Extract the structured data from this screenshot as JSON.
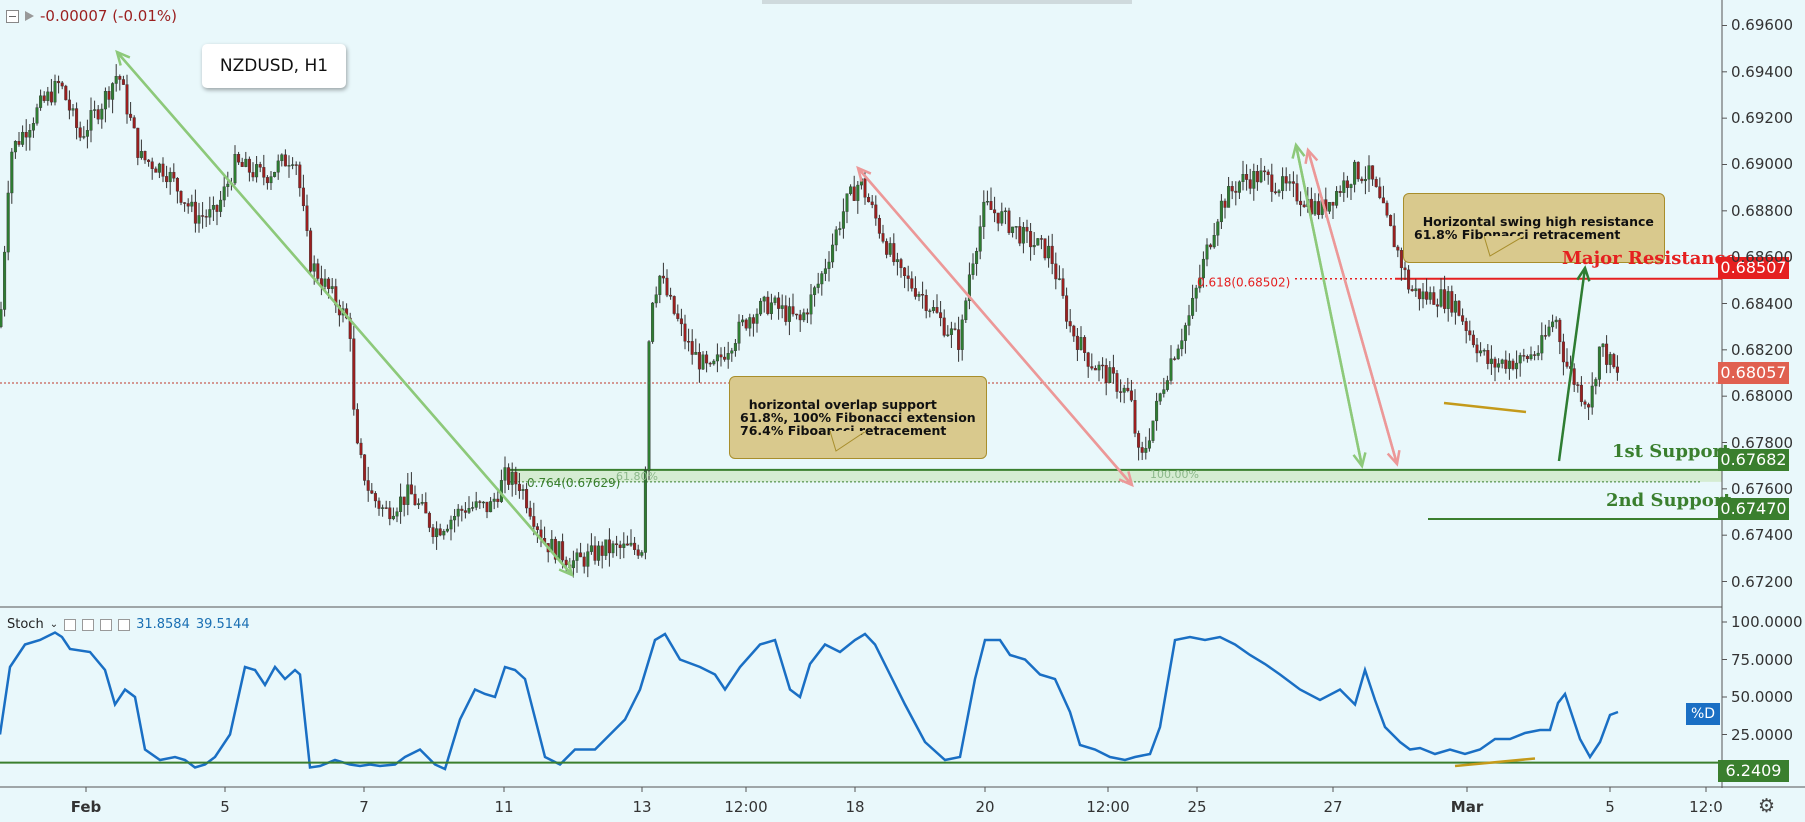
{
  "header": {
    "change": "-0.00007 (-0.01%)",
    "symbol": "NZDUSD, H1"
  },
  "chart_data": {
    "type": "candlestick",
    "symbol": "NZDUSD",
    "timeframe": "H1",
    "ylim": [
      0.6709,
      0.6971
    ],
    "yticks": [
      "0.69600",
      "0.69400",
      "0.69200",
      "0.69000",
      "0.68800",
      "0.68600",
      "0.68400",
      "0.68200",
      "0.68000",
      "0.67800",
      "0.67600",
      "0.67400",
      "0.67200"
    ],
    "xticks": [
      "Feb",
      "5",
      "7",
      "11",
      "13",
      "12:00",
      "18",
      "20",
      "12:00",
      "25",
      "27",
      "Mar",
      "5",
      "12:0"
    ],
    "close_path": [
      [
        0,
        0.683
      ],
      [
        10,
        0.6905
      ],
      [
        40,
        0.6925
      ],
      [
        60,
        0.6935
      ],
      [
        80,
        0.6912
      ],
      [
        100,
        0.6925
      ],
      [
        118,
        0.694
      ],
      [
        140,
        0.6903
      ],
      [
        165,
        0.6898
      ],
      [
        195,
        0.6878
      ],
      [
        215,
        0.6878
      ],
      [
        235,
        0.69
      ],
      [
        265,
        0.6895
      ],
      [
        295,
        0.6905
      ],
      [
        310,
        0.6858
      ],
      [
        340,
        0.6838
      ],
      [
        350,
        0.683
      ],
      [
        355,
        0.678
      ],
      [
        370,
        0.6758
      ],
      [
        385,
        0.675
      ],
      [
        410,
        0.6758
      ],
      [
        435,
        0.6742
      ],
      [
        465,
        0.6752
      ],
      [
        490,
        0.6752
      ],
      [
        505,
        0.6765
      ],
      [
        520,
        0.6762
      ],
      [
        545,
        0.6737
      ],
      [
        575,
        0.6728
      ],
      [
        605,
        0.6734
      ],
      [
        635,
        0.6734
      ],
      [
        643,
        0.6735
      ],
      [
        650,
        0.684
      ],
      [
        660,
        0.6852
      ],
      [
        670,
        0.684
      ],
      [
        690,
        0.682
      ],
      [
        710,
        0.681
      ],
      [
        730,
        0.6823
      ],
      [
        750,
        0.6835
      ],
      [
        770,
        0.684
      ],
      [
        800,
        0.6832
      ],
      [
        820,
        0.685
      ],
      [
        845,
        0.6882
      ],
      [
        860,
        0.6893
      ],
      [
        880,
        0.6872
      ],
      [
        900,
        0.6852
      ],
      [
        920,
        0.6845
      ],
      [
        945,
        0.683
      ],
      [
        960,
        0.6823
      ],
      [
        970,
        0.6855
      ],
      [
        985,
        0.6882
      ],
      [
        1000,
        0.6878
      ],
      [
        1025,
        0.6868
      ],
      [
        1050,
        0.6862
      ],
      [
        1070,
        0.683
      ],
      [
        1090,
        0.6815
      ],
      [
        1110,
        0.6808
      ],
      [
        1130,
        0.68
      ],
      [
        1140,
        0.677
      ],
      [
        1150,
        0.6785
      ],
      [
        1170,
        0.6815
      ],
      [
        1190,
        0.6835
      ],
      [
        1205,
        0.686
      ],
      [
        1220,
        0.6882
      ],
      [
        1240,
        0.6893
      ],
      [
        1260,
        0.6895
      ],
      [
        1285,
        0.689
      ],
      [
        1305,
        0.6885
      ],
      [
        1320,
        0.688
      ],
      [
        1340,
        0.689
      ],
      [
        1355,
        0.6897
      ],
      [
        1370,
        0.6895
      ],
      [
        1380,
        0.6883
      ],
      [
        1395,
        0.6866
      ],
      [
        1410,
        0.6846
      ],
      [
        1425,
        0.6843
      ],
      [
        1440,
        0.6843
      ],
      [
        1455,
        0.684
      ],
      [
        1470,
        0.6827
      ],
      [
        1490,
        0.6813
      ],
      [
        1505,
        0.6815
      ],
      [
        1520,
        0.6815
      ],
      [
        1540,
        0.682
      ],
      [
        1555,
        0.6835
      ],
      [
        1565,
        0.6815
      ],
      [
        1580,
        0.6802
      ],
      [
        1590,
        0.6797
      ],
      [
        1600,
        0.6822
      ],
      [
        1608,
        0.6816
      ],
      [
        1618,
        0.6808
      ]
    ],
    "fib_labels": [
      "0.618(0.68502)",
      "0.764(0.67629)",
      "61.80%",
      "100.00%"
    ],
    "levels": [
      {
        "label": "Major Resistance",
        "price": "0.68507",
        "color": "#e52020"
      },
      {
        "label": "1st Support",
        "price": "0.67682",
        "color": "#3a7f2e"
      },
      {
        "label": "2nd Support",
        "price": "0.67470",
        "color": "#3a7f2e"
      }
    ],
    "current_price": "0.68057",
    "annotations": [
      "Horizontal swing high resistance\n61.8% Fibonacci retracement",
      "horizontal overlap support\n61.8%, 100% Fibonacci extension\n76.4% Fiboancci retracement"
    ],
    "stochastic": {
      "label": "Stoch",
      "k": "31.8584",
      "d": "39.5144",
      "yticks": [
        "100.0000",
        "75.0000",
        "50.0000",
        "25.0000"
      ],
      "last_level": "6.2409",
      "d_tag": "%D",
      "ylim": [
        0,
        100
      ],
      "path": [
        [
          0,
          25
        ],
        [
          10,
          70
        ],
        [
          25,
          85
        ],
        [
          40,
          88
        ],
        [
          55,
          93
        ],
        [
          62,
          90
        ],
        [
          70,
          82
        ],
        [
          90,
          80
        ],
        [
          105,
          68
        ],
        [
          115,
          45
        ],
        [
          125,
          55
        ],
        [
          135,
          50
        ],
        [
          145,
          15
        ],
        [
          160,
          8
        ],
        [
          175,
          10
        ],
        [
          185,
          8
        ],
        [
          195,
          3
        ],
        [
          205,
          5
        ],
        [
          215,
          10
        ],
        [
          230,
          25
        ],
        [
          245,
          70
        ],
        [
          255,
          68
        ],
        [
          265,
          58
        ],
        [
          275,
          70
        ],
        [
          285,
          62
        ],
        [
          295,
          68
        ],
        [
          300,
          65
        ],
        [
          310,
          3
        ],
        [
          320,
          4
        ],
        [
          335,
          8
        ],
        [
          350,
          5
        ],
        [
          360,
          4
        ],
        [
          370,
          5
        ],
        [
          380,
          4
        ],
        [
          395,
          5
        ],
        [
          405,
          10
        ],
        [
          420,
          15
        ],
        [
          435,
          5
        ],
        [
          445,
          2
        ],
        [
          460,
          35
        ],
        [
          475,
          55
        ],
        [
          485,
          52
        ],
        [
          495,
          50
        ],
        [
          505,
          70
        ],
        [
          515,
          68
        ],
        [
          525,
          62
        ],
        [
          545,
          10
        ],
        [
          560,
          5
        ],
        [
          575,
          15
        ],
        [
          595,
          15
        ],
        [
          610,
          25
        ],
        [
          625,
          35
        ],
        [
          640,
          55
        ],
        [
          655,
          88
        ],
        [
          665,
          92
        ],
        [
          680,
          75
        ],
        [
          700,
          70
        ],
        [
          715,
          65
        ],
        [
          725,
          55
        ],
        [
          740,
          70
        ],
        [
          760,
          85
        ],
        [
          775,
          88
        ],
        [
          790,
          55
        ],
        [
          800,
          50
        ],
        [
          810,
          72
        ],
        [
          825,
          85
        ],
        [
          840,
          80
        ],
        [
          855,
          88
        ],
        [
          865,
          92
        ],
        [
          875,
          85
        ],
        [
          890,
          65
        ],
        [
          905,
          45
        ],
        [
          925,
          20
        ],
        [
          945,
          8
        ],
        [
          960,
          10
        ],
        [
          975,
          62
        ],
        [
          985,
          88
        ],
        [
          1000,
          88
        ],
        [
          1010,
          78
        ],
        [
          1025,
          75
        ],
        [
          1040,
          65
        ],
        [
          1055,
          62
        ],
        [
          1070,
          40
        ],
        [
          1080,
          18
        ],
        [
          1095,
          15
        ],
        [
          1110,
          10
        ],
        [
          1125,
          8
        ],
        [
          1135,
          10
        ],
        [
          1150,
          12
        ],
        [
          1160,
          30
        ],
        [
          1175,
          88
        ],
        [
          1190,
          90
        ],
        [
          1205,
          88
        ],
        [
          1220,
          90
        ],
        [
          1235,
          85
        ],
        [
          1250,
          78
        ],
        [
          1265,
          72
        ],
        [
          1280,
          65
        ],
        [
          1300,
          55
        ],
        [
          1320,
          48
        ],
        [
          1340,
          55
        ],
        [
          1355,
          45
        ],
        [
          1365,
          68
        ],
        [
          1375,
          48
        ],
        [
          1385,
          30
        ],
        [
          1400,
          20
        ],
        [
          1410,
          15
        ],
        [
          1420,
          16
        ],
        [
          1435,
          12
        ],
        [
          1450,
          15
        ],
        [
          1465,
          12
        ],
        [
          1480,
          15
        ],
        [
          1495,
          22
        ],
        [
          1510,
          22
        ],
        [
          1525,
          26
        ],
        [
          1540,
          28
        ],
        [
          1550,
          28
        ],
        [
          1558,
          46
        ],
        [
          1565,
          52
        ],
        [
          1572,
          38
        ],
        [
          1580,
          22
        ],
        [
          1590,
          10
        ],
        [
          1600,
          20
        ],
        [
          1610,
          38
        ],
        [
          1618,
          40
        ]
      ]
    }
  },
  "colors": {
    "background": "#e9f8fb",
    "up_candle": "#2e7d32",
    "down_candle": "#9b1f1f",
    "stoch_line": "#1a6fc4",
    "green_arrow": "#8dc97a",
    "red_arrow": "#ec9898",
    "resistance": "#e52020",
    "support": "#3a7f2e",
    "annotation_fill": "#d9c98d"
  }
}
